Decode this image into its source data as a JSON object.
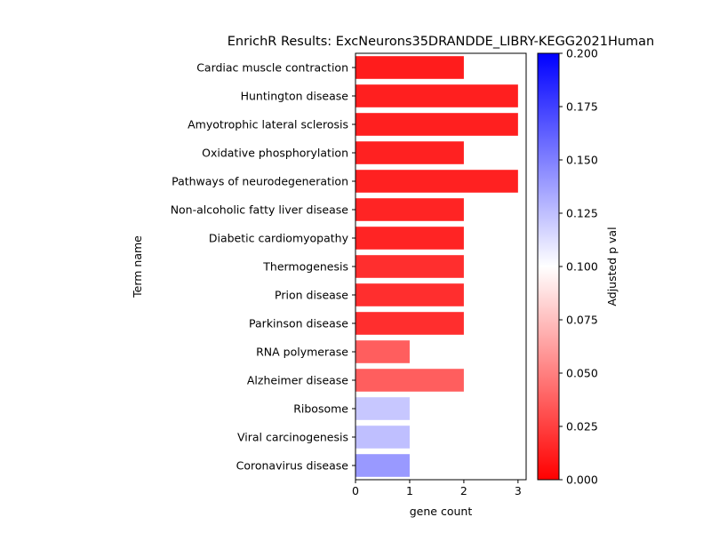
{
  "chart_data": {
    "type": "bar",
    "orientation": "horizontal",
    "title": "EnrichR Results: ExcNeurons35DRANDDE_LIBRY-KEGG2021Human",
    "xlabel": "gene count",
    "ylabel": "Term name",
    "xlim": [
      0,
      3.15
    ],
    "xticks": [
      "0",
      "1",
      "2",
      "3"
    ],
    "categories": [
      "Cardiac muscle contraction",
      "Huntington disease",
      "Amyotrophic lateral sclerosis",
      "Oxidative phosphorylation",
      "Pathways of neurodegeneration",
      "Non-alcoholic fatty liver disease",
      "Diabetic cardiomyopathy",
      "Thermogenesis",
      "Prion disease",
      "Parkinson disease",
      "RNA polymerase",
      "Alzheimer disease",
      "Ribosome",
      "Viral carcinogenesis",
      "Coronavirus disease"
    ],
    "values": [
      2,
      3,
      3,
      2,
      3,
      2,
      2,
      2,
      2,
      2,
      1,
      2,
      1,
      1,
      1
    ],
    "adjusted_p": [
      0.011,
      0.012,
      0.012,
      0.013,
      0.013,
      0.014,
      0.014,
      0.018,
      0.018,
      0.018,
      0.037,
      0.037,
      0.122,
      0.125,
      0.14
    ],
    "colorbar": {
      "label": "Adjusted p val",
      "range": [
        0,
        0.2
      ],
      "ticks": [
        "0.000",
        "0.025",
        "0.050",
        "0.075",
        "0.100",
        "0.125",
        "0.150",
        "0.175",
        "0.200"
      ],
      "colors": [
        "#ff0000",
        "#ffffff",
        "#0000ff"
      ]
    }
  }
}
